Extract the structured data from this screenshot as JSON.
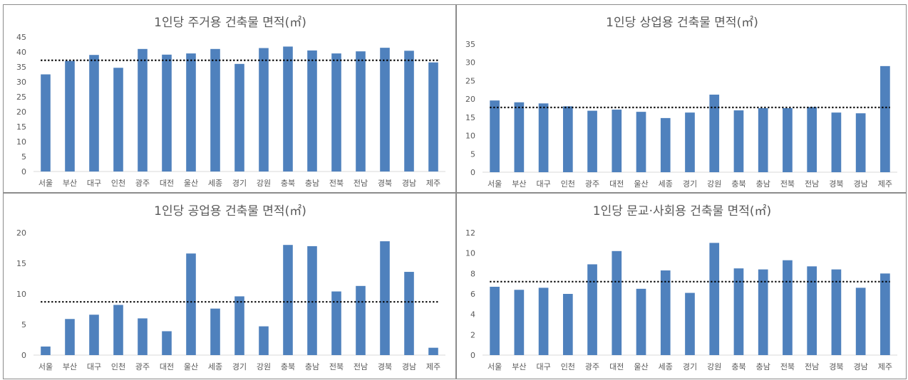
{
  "colors": {
    "bar": "#4f81bd",
    "average_line": "#000000",
    "axis": "#d9d9d9",
    "text": "#595959",
    "border": "#8c8c8c"
  },
  "chart_data": [
    {
      "type": "bar",
      "title": "1인당 주거용 건축물 면적(㎡)",
      "categories": [
        "서울",
        "부산",
        "대구",
        "인천",
        "광주",
        "대전",
        "울산",
        "세종",
        "경기",
        "강원",
        "충북",
        "충남",
        "전북",
        "전남",
        "경북",
        "경남",
        "제주"
      ],
      "values": [
        32.5,
        37.0,
        39.0,
        34.7,
        41.0,
        39.1,
        39.5,
        41.0,
        36.0,
        41.3,
        41.8,
        40.5,
        39.5,
        40.2,
        41.4,
        40.4,
        36.5
      ],
      "reference_line": 37.2,
      "ylim": [
        0,
        45
      ],
      "yticks": [
        0,
        5,
        10,
        15,
        20,
        25,
        30,
        35,
        40,
        45
      ],
      "xlabel": "",
      "ylabel": "",
      "grid": false,
      "legend": "none"
    },
    {
      "type": "bar",
      "title": "1인당 상업용 건축물 면적(㎡)",
      "categories": [
        "서울",
        "부산",
        "대구",
        "인천",
        "광주",
        "대전",
        "울산",
        "세종",
        "경기",
        "강원",
        "충북",
        "충남",
        "전북",
        "전남",
        "경북",
        "경남",
        "제주"
      ],
      "values": [
        19.6,
        19.1,
        18.8,
        18.0,
        16.8,
        17.1,
        16.5,
        14.8,
        16.3,
        21.2,
        16.9,
        17.5,
        17.5,
        17.8,
        16.3,
        16.1,
        29.0
      ],
      "reference_line": 17.7,
      "ylim": [
        0,
        35
      ],
      "yticks": [
        0,
        5,
        10,
        15,
        20,
        25,
        30,
        35
      ],
      "xlabel": "",
      "ylabel": "",
      "grid": false,
      "legend": "none"
    },
    {
      "type": "bar",
      "title": "1인당 공업용 건축물 면적(㎡)",
      "categories": [
        "서울",
        "부산",
        "대구",
        "인천",
        "광주",
        "대전",
        "울산",
        "세종",
        "경기",
        "강원",
        "충북",
        "충남",
        "전북",
        "전남",
        "경북",
        "경남",
        "제주"
      ],
      "values": [
        1.4,
        5.9,
        6.6,
        8.2,
        6.0,
        3.9,
        16.6,
        7.6,
        9.6,
        4.7,
        18.0,
        17.8,
        10.4,
        11.3,
        18.6,
        13.6,
        1.2
      ],
      "reference_line": 8.7,
      "ylim": [
        0,
        20
      ],
      "yticks": [
        0,
        5,
        10,
        15,
        20
      ],
      "xlabel": "",
      "ylabel": "",
      "grid": false,
      "legend": "none"
    },
    {
      "type": "bar",
      "title": "1인당 문교·사회용 건축물 면적(㎡)",
      "categories": [
        "서울",
        "부산",
        "대구",
        "인천",
        "광주",
        "대전",
        "울산",
        "세종",
        "경기",
        "강원",
        "충북",
        "충남",
        "전북",
        "전남",
        "경북",
        "경남",
        "제주"
      ],
      "values": [
        6.7,
        6.4,
        6.6,
        6.0,
        8.9,
        10.2,
        6.5,
        8.3,
        6.1,
        11.0,
        8.5,
        8.4,
        9.3,
        8.7,
        8.4,
        6.6,
        8.0
      ],
      "reference_line": 7.2,
      "ylim": [
        0,
        12
      ],
      "yticks": [
        0,
        2,
        4,
        6,
        8,
        10,
        12
      ],
      "xlabel": "",
      "ylabel": "",
      "grid": false,
      "legend": "none"
    }
  ]
}
